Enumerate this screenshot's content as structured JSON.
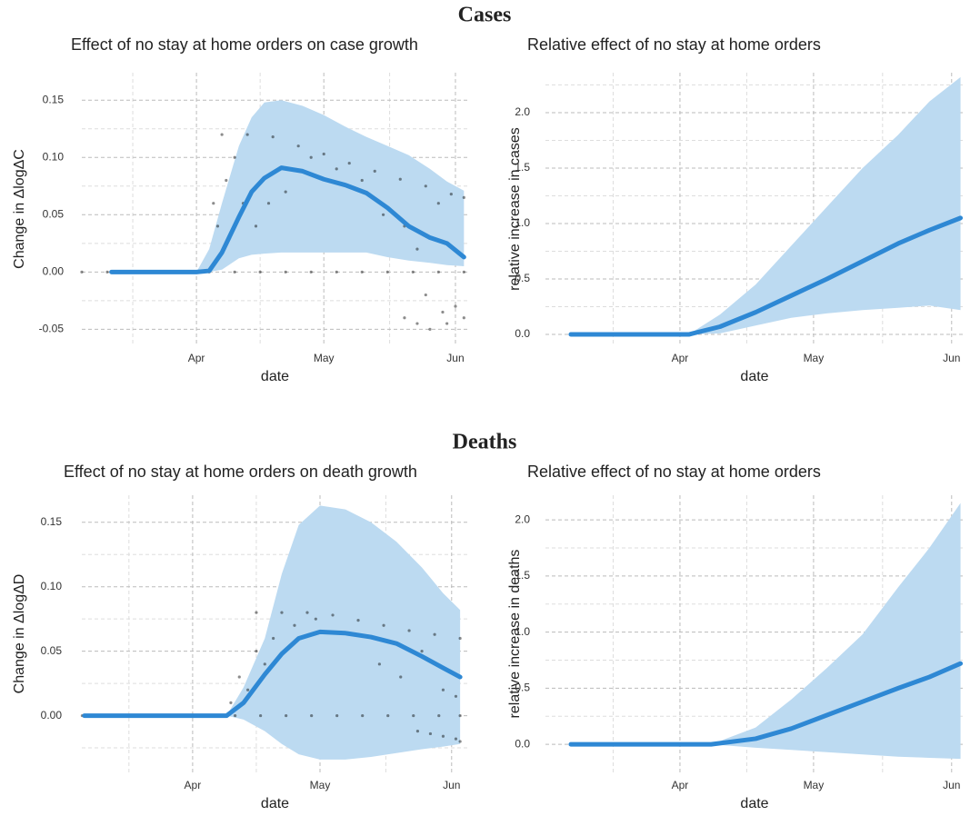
{
  "section_titles": [
    "Cases",
    "Deaths"
  ],
  "chart_data": [
    {
      "type": "line",
      "title": "Effect of no stay at home orders on case growth",
      "xlabel": "date",
      "ylabel": "Change in ΔlogΔC",
      "x": [
        11,
        31,
        34,
        37,
        41,
        44,
        47,
        51,
        56,
        61,
        66,
        71,
        76,
        81,
        86,
        90,
        94
      ],
      "values": [
        0,
        0,
        0.001,
        0.017,
        0.048,
        0.07,
        0.082,
        0.091,
        0.088,
        0.081,
        0.076,
        0.069,
        0.056,
        0.04,
        0.03,
        0.025,
        0.013
      ],
      "band": {
        "lower": [
          0,
          0,
          0,
          0.002,
          0.012,
          0.015,
          0.016,
          0.017,
          0.017,
          0.017,
          0.017,
          0.017,
          0.013,
          0.01,
          0.008,
          0.006,
          0.005
        ],
        "upper": [
          0,
          0,
          0.02,
          0.06,
          0.11,
          0.135,
          0.148,
          0.15,
          0.145,
          0.137,
          0.127,
          0.118,
          0.11,
          0.102,
          0.09,
          0.079,
          0.071
        ]
      },
      "points": {
        "x": [
          4,
          10,
          16,
          22,
          28,
          34,
          40,
          46,
          52,
          58,
          64,
          70,
          76,
          82,
          88,
          94,
          37,
          43,
          49,
          55,
          61,
          67,
          73,
          79,
          85,
          91,
          94,
          35,
          36,
          38,
          40,
          42,
          45,
          48,
          52,
          58,
          64,
          70,
          75,
          80,
          83,
          88,
          80,
          83,
          86,
          89,
          92,
          94,
          85,
          90
        ],
        "y": [
          0,
          0,
          0,
          0,
          0,
          0,
          0,
          0,
          0,
          0,
          0,
          0,
          0,
          0,
          0,
          0,
          0.12,
          0.12,
          0.118,
          0.11,
          0.103,
          0.095,
          0.088,
          0.081,
          0.075,
          0.068,
          0.065,
          0.06,
          0.04,
          0.08,
          0.1,
          0.06,
          0.04,
          0.06,
          0.07,
          0.1,
          0.09,
          0.08,
          0.05,
          0.04,
          0.02,
          0.06,
          -0.04,
          -0.045,
          -0.05,
          -0.035,
          -0.03,
          -0.04,
          -0.02,
          -0.045
        ]
      },
      "color": "#2e88d4",
      "band_color": "#bcdaf1",
      "point_color": "#000000",
      "xlim": [
        4,
        95
      ],
      "ylim": [
        -0.064,
        0.174
      ],
      "xticks": [
        {
          "value": 31,
          "label": "Apr"
        },
        {
          "value": 61,
          "label": "May"
        },
        {
          "value": 92,
          "label": "Jun"
        }
      ],
      "yticks": [
        -0.05,
        {
          "value": 0,
          "label": "0.00"
        },
        0.05,
        {
          "value": 0.1,
          "label": "0.10"
        },
        0.15
      ],
      "grid": true,
      "minor_grid": true
    },
    {
      "type": "line",
      "title": "Relative effect of no stay at home orders",
      "xlabel": "date",
      "ylabel": "relative increase in cases",
      "x": [
        6.5,
        33,
        40,
        48,
        56,
        64,
        72,
        80,
        87,
        94
      ],
      "values": [
        0,
        0,
        0.07,
        0.2,
        0.35,
        0.5,
        0.66,
        0.82,
        0.94,
        1.05
      ],
      "band": {
        "lower": [
          0,
          0,
          0.01,
          0.08,
          0.15,
          0.19,
          0.22,
          0.24,
          0.26,
          0.22
        ],
        "upper": [
          0,
          0,
          0.18,
          0.45,
          0.8,
          1.15,
          1.5,
          1.8,
          2.1,
          2.32
        ]
      },
      "color": "#2e88d4",
      "band_color": "#bcdaf1",
      "xlim": [
        0.8,
        94.7
      ],
      "ylim": [
        -0.098,
        2.36
      ],
      "xticks": [
        {
          "value": 31,
          "label": "Apr"
        },
        {
          "value": 61,
          "label": "May"
        },
        {
          "value": 92,
          "label": "Jun"
        }
      ],
      "yticks": [
        {
          "value": 0,
          "label": "0.0"
        },
        0.5,
        {
          "value": 1,
          "label": "1.0"
        },
        1.5,
        {
          "value": 2,
          "label": "2.0"
        }
      ],
      "grid": true,
      "minor_grid": true
    },
    {
      "type": "line",
      "title": "Effect of no stay at home orders on death growth",
      "xlabel": "date",
      "ylabel": "Change in ΔlogΔD",
      "x": [
        5.5,
        39,
        43,
        48,
        52,
        56,
        61,
        67,
        73,
        79,
        85,
        90,
        94
      ],
      "values": [
        0,
        0,
        0.01,
        0.032,
        0.048,
        0.06,
        0.065,
        0.064,
        0.061,
        0.056,
        0.046,
        0.037,
        0.03
      ],
      "band": {
        "lower": [
          0,
          0,
          -0.003,
          -0.012,
          -0.022,
          -0.03,
          -0.034,
          -0.034,
          -0.032,
          -0.029,
          -0.026,
          -0.024,
          -0.022
        ],
        "upper": [
          0,
          0,
          0.022,
          0.06,
          0.11,
          0.148,
          0.163,
          0.16,
          0.15,
          0.135,
          0.115,
          0.095,
          0.082
        ]
      },
      "points": {
        "x": [
          5,
          11,
          17,
          23,
          29,
          35,
          41,
          47,
          53,
          59,
          65,
          71,
          77,
          83,
          89,
          94,
          46,
          52,
          58,
          64,
          70,
          76,
          82,
          88,
          94,
          40,
          42,
          44,
          46,
          48,
          50,
          55,
          60,
          75,
          80,
          85,
          90,
          93,
          84,
          87,
          90,
          93,
          94
        ],
        "y": [
          0,
          0,
          0,
          0,
          0,
          0,
          0,
          0,
          0,
          0,
          0,
          0,
          0,
          0,
          0,
          0,
          0.08,
          0.08,
          0.08,
          0.078,
          0.074,
          0.07,
          0.066,
          0.063,
          0.06,
          0.01,
          0.03,
          0.02,
          0.05,
          0.04,
          0.06,
          0.07,
          0.075,
          0.04,
          0.03,
          0.05,
          0.02,
          0.015,
          -0.012,
          -0.014,
          -0.016,
          -0.018,
          -0.02
        ]
      },
      "color": "#2e88d4",
      "band_color": "#bcdaf1",
      "point_color": "#000000",
      "xlim": [
        4.9,
        95.9
      ],
      "ylim": [
        -0.044,
        0.171
      ],
      "xticks": [
        {
          "value": 31,
          "label": "Apr"
        },
        {
          "value": 61,
          "label": "May"
        },
        {
          "value": 92,
          "label": "Jun"
        }
      ],
      "yticks": [
        {
          "value": 0,
          "label": "0.00"
        },
        0.05,
        {
          "value": 0.1,
          "label": "0.10"
        },
        0.15
      ],
      "grid": true,
      "minor_grid": true
    },
    {
      "type": "line",
      "title": "Relative effect of no stay at home orders",
      "xlabel": "date",
      "ylabel": "relative increase in deaths",
      "x": [
        6.5,
        38,
        48,
        56,
        64,
        72,
        80,
        87,
        94
      ],
      "values": [
        0,
        0,
        0.05,
        0.14,
        0.26,
        0.38,
        0.5,
        0.6,
        0.72
      ],
      "band": {
        "lower": [
          0,
          0,
          -0.03,
          -0.05,
          -0.07,
          -0.09,
          -0.11,
          -0.12,
          -0.13
        ],
        "upper": [
          0,
          0,
          0.15,
          0.4,
          0.68,
          0.98,
          1.4,
          1.75,
          2.15
        ]
      },
      "color": "#2e88d4",
      "band_color": "#bcdaf1",
      "xlim": [
        0.8,
        94.7
      ],
      "ylim": [
        -0.25,
        2.22
      ],
      "xticks": [
        {
          "value": 31,
          "label": "Apr"
        },
        {
          "value": 61,
          "label": "May"
        },
        {
          "value": 92,
          "label": "Jun"
        }
      ],
      "yticks": [
        {
          "value": 0,
          "label": "0.0"
        },
        0.5,
        {
          "value": 1,
          "label": "1.0"
        },
        1.5,
        {
          "value": 2,
          "label": "2.0"
        }
      ],
      "grid": true,
      "minor_grid": true
    }
  ]
}
